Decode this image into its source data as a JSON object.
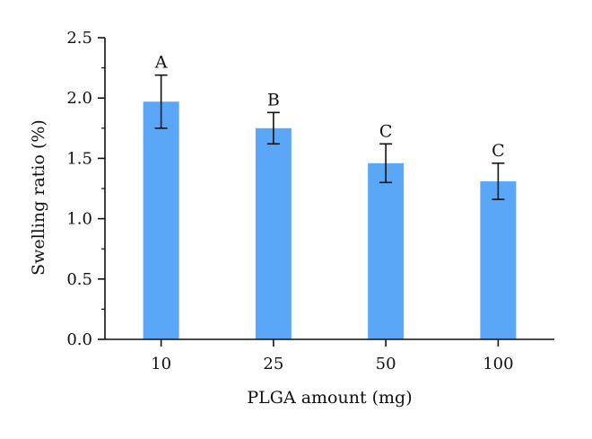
{
  "chart_data": {
    "type": "bar",
    "title": "",
    "xlabel": "PLGA amount (mg)",
    "ylabel": "Swelling ratio (%)",
    "categories": [
      "10",
      "25",
      "50",
      "100"
    ],
    "values": [
      1.97,
      1.75,
      1.46,
      1.31
    ],
    "errors": [
      0.22,
      0.13,
      0.16,
      0.15
    ],
    "significance_labels": [
      "A",
      "B",
      "C",
      "C"
    ],
    "ylim": [
      0,
      2.5
    ],
    "yticks": [
      0.0,
      0.5,
      1.0,
      1.5,
      2.0,
      2.5
    ],
    "ytick_labels": [
      "0.0",
      "0.5",
      "1.0",
      "1.5",
      "2.0",
      "2.5"
    ],
    "grid": false,
    "bar_color": "#5aa7f7",
    "axis_color": "#111111"
  }
}
